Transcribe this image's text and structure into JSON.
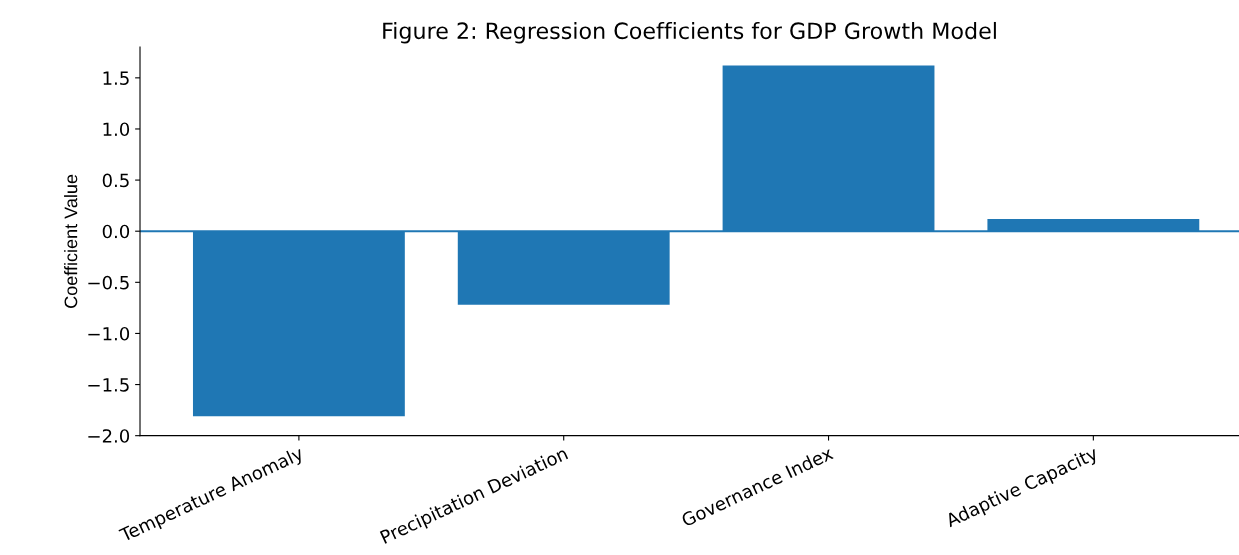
{
  "chart_data": {
    "type": "bar",
    "title": "Figure 2: Regression Coefficients for GDP Growth Model",
    "ylabel": "Coefficient Value",
    "categories": [
      "Temperature Anomaly",
      "Precipitation Deviation",
      "Governance Index",
      "Adaptive Capacity"
    ],
    "values": [
      -1.81,
      -0.72,
      1.62,
      0.12
    ],
    "color": "#1f77b4",
    "ylim": [
      -2.0,
      1.8
    ],
    "yticks": [
      {
        "value": -2.0,
        "label": "−2.0"
      },
      {
        "value": -1.5,
        "label": "−1.5"
      },
      {
        "value": -1.0,
        "label": "−1.0"
      },
      {
        "value": -0.5,
        "label": "−0.5"
      },
      {
        "value": 0.0,
        "label": "0.0"
      },
      {
        "value": 0.5,
        "label": "0.5"
      },
      {
        "value": 1.0,
        "label": "1.0"
      },
      {
        "value": 1.5,
        "label": "1.5"
      }
    ],
    "ref_lines": [
      {
        "axis": "y",
        "value": 0,
        "color": "#1f77b4"
      }
    ],
    "grid": false,
    "legend": false
  }
}
